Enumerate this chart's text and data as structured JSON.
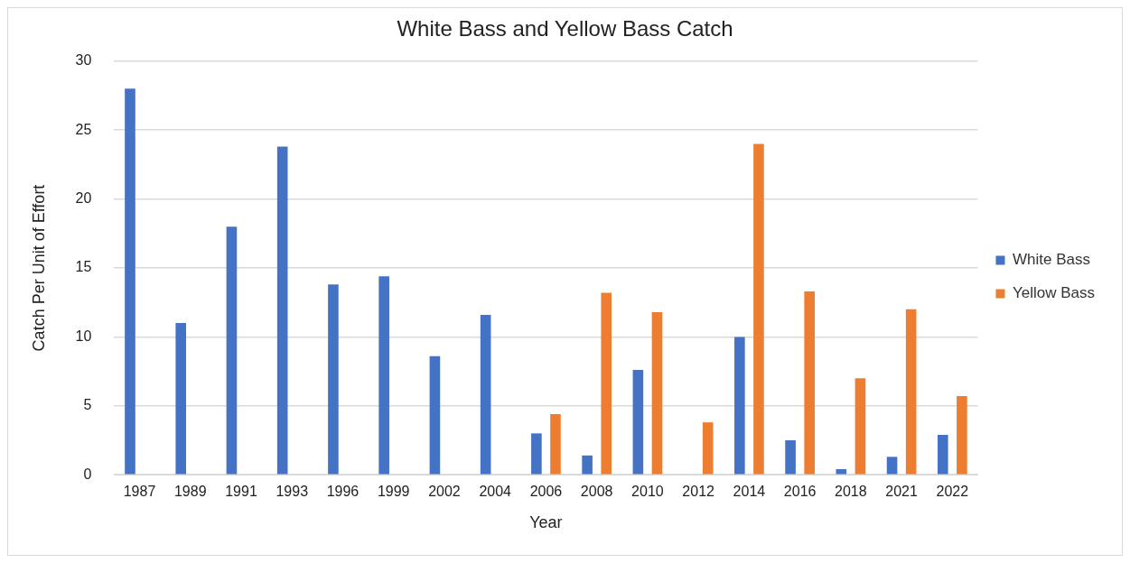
{
  "chart_data": {
    "type": "bar",
    "title": "White Bass and Yellow Bass Catch",
    "xlabel": "Year",
    "ylabel": "Catch Per Unit of Effort",
    "categories": [
      "1987",
      "1989",
      "1991",
      "1993",
      "1996",
      "1999",
      "2002",
      "2004",
      "2006",
      "2008",
      "2010",
      "2012",
      "2014",
      "2016",
      "2018",
      "2021",
      "2022"
    ],
    "series": [
      {
        "name": "White Bass",
        "color": "#4472c4",
        "values": [
          28,
          11,
          18,
          23.8,
          13.8,
          14.4,
          8.6,
          11.6,
          3,
          1.4,
          7.6,
          null,
          10,
          2.5,
          0.4,
          1.3,
          2.9
        ]
      },
      {
        "name": "Yellow Bass",
        "color": "#ed7d31",
        "values": [
          null,
          null,
          null,
          null,
          null,
          null,
          null,
          null,
          4.4,
          13.2,
          11.8,
          3.8,
          24,
          13.3,
          7,
          12,
          5.7
        ]
      }
    ],
    "ylim": [
      0,
      30
    ],
    "yticks": [
      0,
      5,
      10,
      15,
      20,
      25,
      30
    ],
    "grid": "y",
    "legend": "right"
  }
}
